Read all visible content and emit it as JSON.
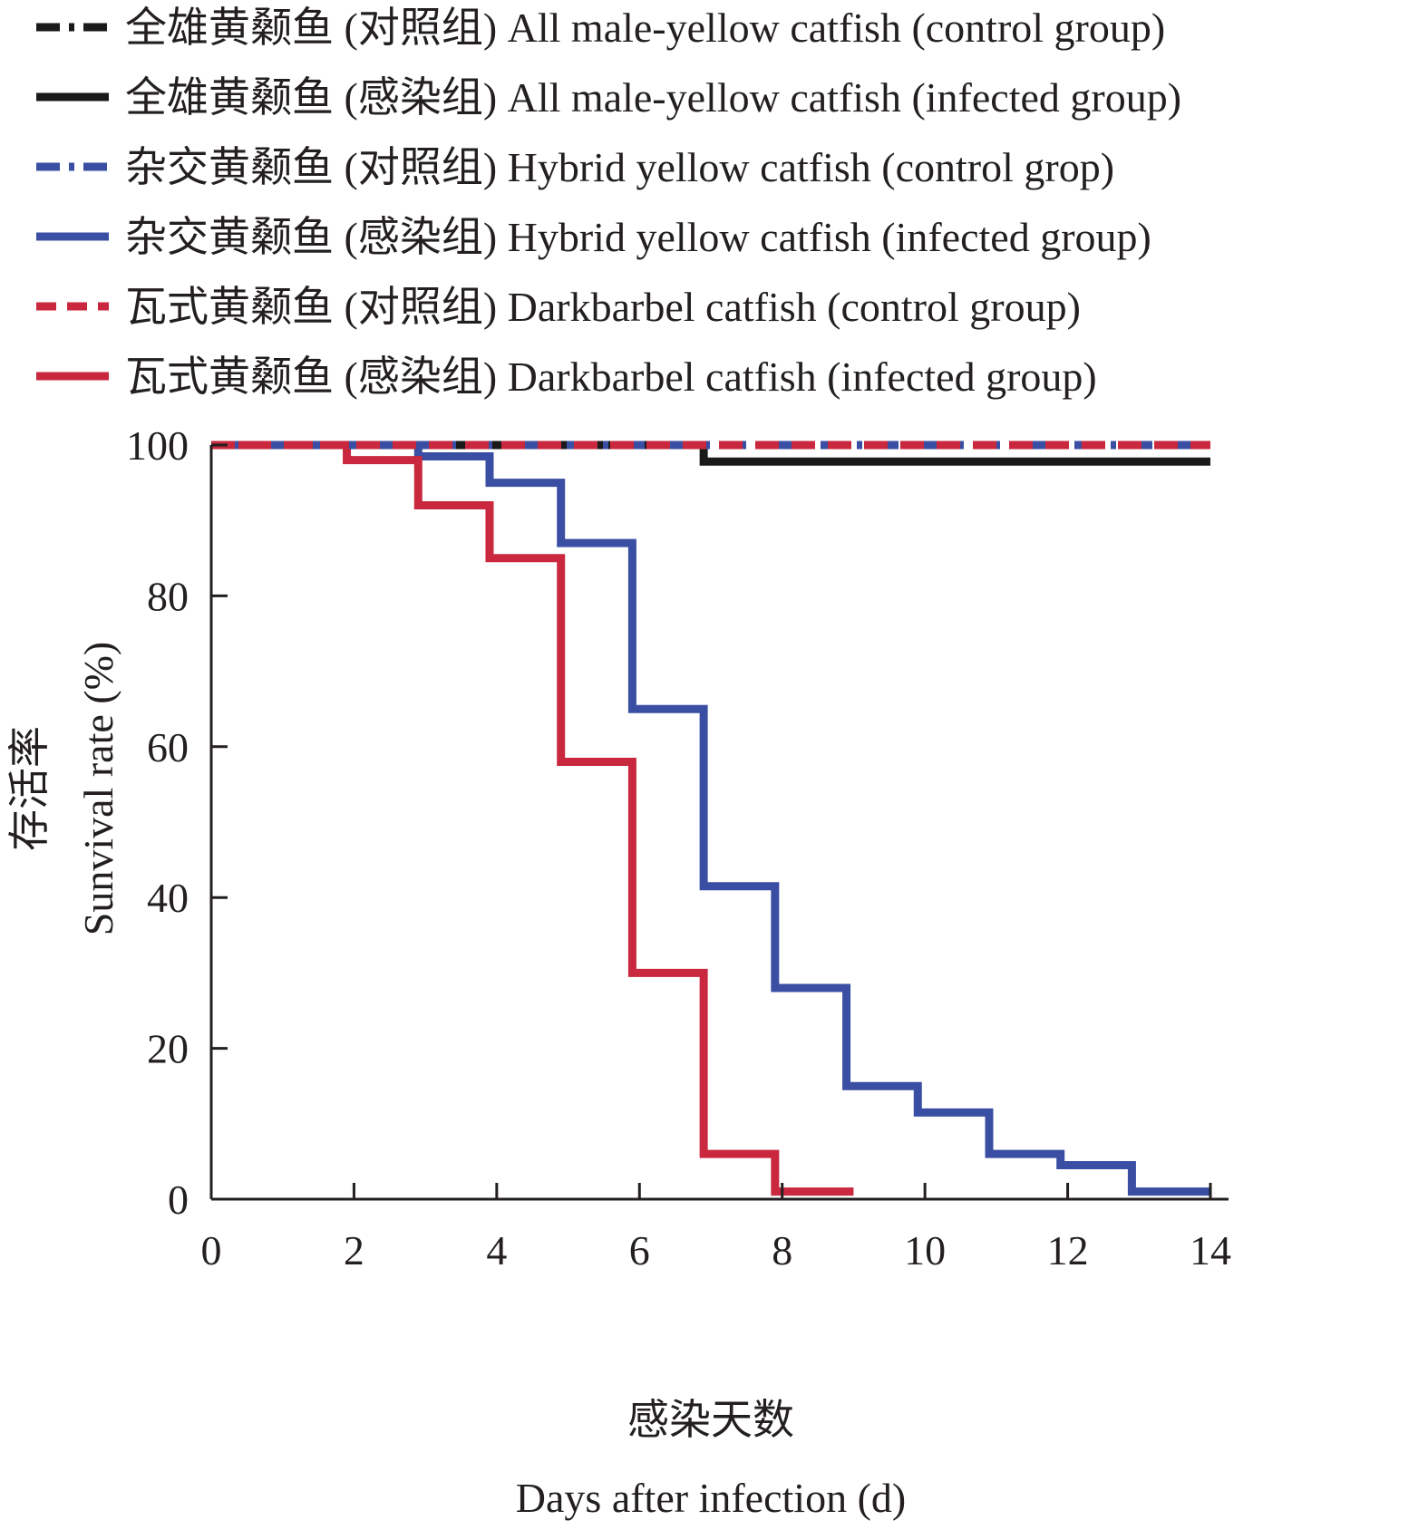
{
  "chart_data": {
    "type": "line",
    "subtype": "step (Kaplan-Meier survival curves)",
    "title": "",
    "xlabel_cn": "感染天数",
    "xlabel": "Days after infection (d)",
    "ylabel_cn": "存活率",
    "ylabel": "Sunvival rate (%)",
    "xlim": [
      0,
      14
    ],
    "ylim": [
      0,
      100
    ],
    "xticks": [
      0,
      2,
      4,
      6,
      8,
      10,
      12,
      14
    ],
    "yticks": [
      0,
      20,
      40,
      60,
      80,
      100
    ],
    "grid": false,
    "legend_position": "top",
    "series": [
      {
        "name": "全雄黄颡鱼 (对照组) All male-yellow catfish (control group)",
        "color": "#1a1a1a",
        "style": "dash-dot",
        "x": [
          0,
          14
        ],
        "y": [
          100,
          100
        ]
      },
      {
        "name": "全雄黄颡鱼 (感染组) All male-yellow catfish (infected group)",
        "color": "#1a1a1a",
        "style": "solid",
        "x": [
          0,
          6.9,
          14
        ],
        "y": [
          100,
          97.8,
          97.8
        ]
      },
      {
        "name": "杂交黄颡鱼 (对照组) Hybrid yellow catfish (control grop)",
        "color": "#3a4fa3",
        "style": "dash-dot",
        "x": [
          0,
          14
        ],
        "y": [
          100,
          100
        ]
      },
      {
        "name": "杂交黄颡鱼 (感染组) Hybrid yellow catfish (infected group)",
        "color": "#3a4fa3",
        "style": "solid",
        "x": [
          0,
          2.9,
          3.9,
          4.9,
          5.9,
          6.9,
          7.9,
          8.9,
          9.9,
          10.9,
          11.9,
          12.9,
          14
        ],
        "y": [
          100,
          98.5,
          95,
          87,
          65,
          41.5,
          28,
          15,
          11.5,
          6,
          4.5,
          1,
          1
        ]
      },
      {
        "name": "瓦式黄颡鱼 (对照组) Darkbarbel catfish (control group)",
        "color": "#c9283e",
        "style": "dashed",
        "x": [
          0,
          14
        ],
        "y": [
          100,
          100
        ]
      },
      {
        "name": "瓦式黄颡鱼 (感染组) Darkbarbel catfish (infected group)",
        "color": "#c9283e",
        "style": "solid",
        "x": [
          0,
          1.9,
          2.9,
          3.9,
          4.9,
          5.9,
          6.9,
          7.9,
          9
        ],
        "y": [
          100,
          98,
          92,
          85,
          58,
          30,
          6,
          1,
          1
        ]
      }
    ]
  }
}
